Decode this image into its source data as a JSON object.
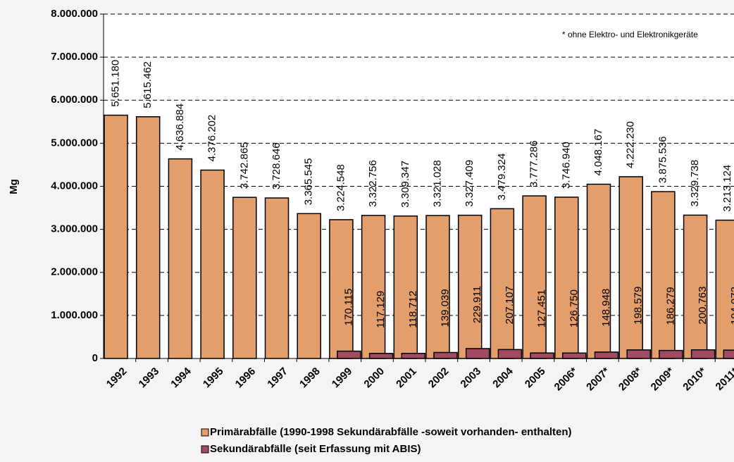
{
  "chart_data": {
    "type": "bar",
    "y_label": "Mg",
    "annotation": "* ohne Elektro- und Elektronikgeräte",
    "categories": [
      "1992",
      "1993",
      "1994",
      "1995",
      "1996",
      "1997",
      "1998",
      "1999",
      "2000",
      "2001",
      "2002",
      "2003",
      "2004",
      "2005",
      "2006*",
      "2007*",
      "2008*",
      "2009*",
      "2010*",
      "2011*"
    ],
    "series": [
      {
        "name": "Primärabfälle (1990-1998 Sekundärabfälle -soweit vorhanden- enthalten)",
        "color": "#e39e6c",
        "values": [
          5651180,
          5615462,
          4636884,
          4376202,
          3742865,
          3728646,
          3365545,
          3224548,
          3322756,
          3309347,
          3321028,
          3327409,
          3479324,
          3777286,
          3746940,
          4048167,
          4222230,
          3875536,
          3329738,
          3213124
        ],
        "value_labels": [
          "5.651.180",
          "5.615.462",
          "4.636.884",
          "4.376.202",
          "3.742.865",
          "3.728.646",
          "3.365.545",
          "3.224.548",
          "3.322.756",
          "3.309.347",
          "3.321.028",
          "3.327.409",
          "3.479.324",
          "3.777.286",
          "3.746.940",
          "4.048.167",
          "4.222.230",
          "3.875.536",
          "3.329.738",
          "3.213.124"
        ]
      },
      {
        "name": "Sekundärabfälle (seit Erfassung mit ABIS)",
        "color": "#a34a63",
        "values": [
          null,
          null,
          null,
          null,
          null,
          null,
          null,
          170115,
          117129,
          118712,
          139039,
          229911,
          207107,
          127451,
          126750,
          148948,
          198579,
          186279,
          200763,
          194073
        ],
        "value_labels": [
          null,
          null,
          null,
          null,
          null,
          null,
          null,
          "170.115",
          "117.129",
          "118.712",
          "139.039",
          "229.911",
          "207.107",
          "127.451",
          "126.750",
          "148.948",
          "198.579",
          "186.279",
          "200.763",
          "194.073"
        ]
      }
    ],
    "ylim": [
      0,
      8000000
    ],
    "yticks": [
      0,
      {
        "value": 1000000,
        "label": "1.000.000"
      },
      {
        "value": 2000000,
        "label": "2.000.000"
      },
      {
        "value": 3000000,
        "label": "3.000.000"
      },
      {
        "value": 4000000,
        "label": "4.000.000"
      },
      {
        "value": 5000000,
        "label": "5.000.000"
      },
      {
        "value": 6000000,
        "label": "6.000.000"
      },
      {
        "value": 7000000,
        "label": "7.000.000"
      },
      {
        "value": 8000000,
        "label": "8.000.000"
      }
    ],
    "grid": true
  }
}
